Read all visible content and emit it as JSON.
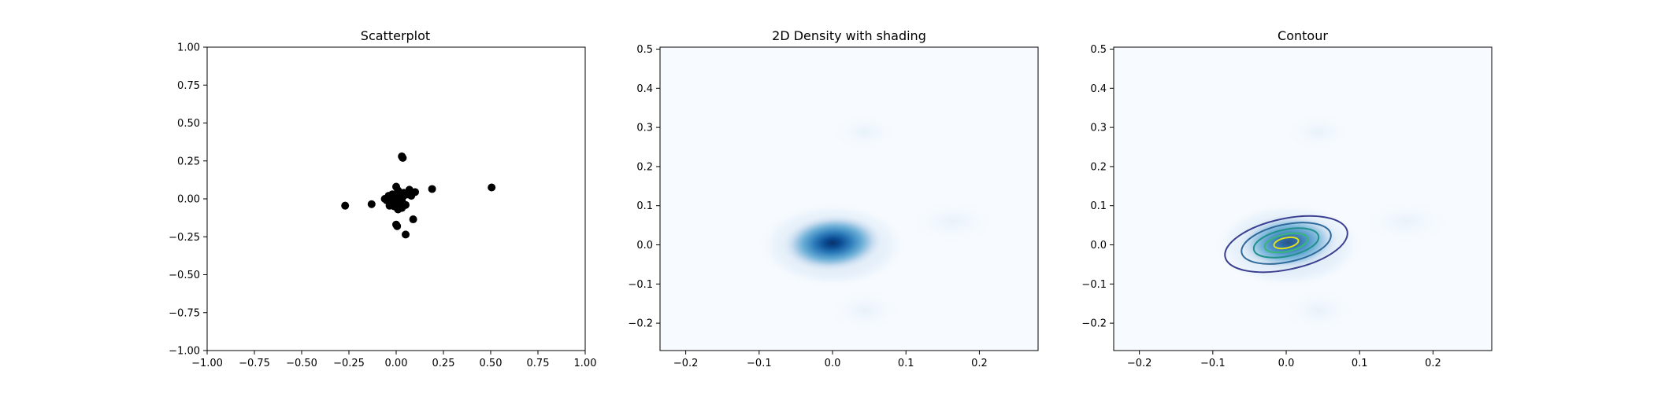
{
  "chart_data": [
    {
      "type": "scatter",
      "title": "Scatterplot",
      "xlim": [
        -1.0,
        1.0
      ],
      "ylim": [
        -1.0,
        1.0
      ],
      "xticks": [
        "−1.00",
        "−0.75",
        "−0.50",
        "−0.25",
        "0.00",
        "0.25",
        "0.50",
        "0.75",
        "1.00"
      ],
      "yticks": [
        "−1.00",
        "−0.75",
        "−0.50",
        "−0.25",
        "0.00",
        "0.25",
        "0.50",
        "0.75",
        "1.00"
      ],
      "grid": false,
      "color": "#000000",
      "points": [
        {
          "x": 0.03,
          "y": 0.28
        },
        {
          "x": 0.035,
          "y": 0.27
        },
        {
          "x": 0.505,
          "y": 0.075
        },
        {
          "x": 0.19,
          "y": 0.065
        },
        {
          "x": -0.27,
          "y": -0.045
        },
        {
          "x": -0.13,
          "y": -0.035
        },
        {
          "x": 0.05,
          "y": -0.235
        },
        {
          "x": 0.09,
          "y": -0.135
        },
        {
          "x": 0.0,
          "y": -0.17
        },
        {
          "x": 0.005,
          "y": -0.18
        },
        {
          "x": 0.1,
          "y": 0.045
        },
        {
          "x": 0.07,
          "y": 0.06
        },
        {
          "x": 0.06,
          "y": 0.03
        },
        {
          "x": 0.04,
          "y": 0.02
        },
        {
          "x": 0.02,
          "y": 0.0
        },
        {
          "x": 0.0,
          "y": 0.08
        },
        {
          "x": 0.01,
          "y": 0.055
        },
        {
          "x": -0.02,
          "y": 0.03
        },
        {
          "x": -0.04,
          "y": 0.02
        },
        {
          "x": -0.05,
          "y": -0.01
        },
        {
          "x": -0.03,
          "y": -0.03
        },
        {
          "x": -0.01,
          "y": -0.05
        },
        {
          "x": 0.01,
          "y": -0.07
        },
        {
          "x": 0.03,
          "y": -0.06
        },
        {
          "x": 0.05,
          "y": -0.04
        },
        {
          "x": 0.0,
          "y": 0.0
        },
        {
          "x": -0.01,
          "y": 0.01
        },
        {
          "x": 0.02,
          "y": 0.02
        },
        {
          "x": 0.03,
          "y": -0.01
        },
        {
          "x": -0.02,
          "y": -0.02
        },
        {
          "x": 0.04,
          "y": 0.04
        },
        {
          "x": 0.08,
          "y": 0.02
        },
        {
          "x": -0.06,
          "y": 0.0
        },
        {
          "x": 0.015,
          "y": -0.035
        },
        {
          "x": -0.035,
          "y": -0.045
        },
        {
          "x": 0.025,
          "y": 0.035
        }
      ]
    },
    {
      "type": "heatmap",
      "title": "2D Density with shading",
      "colormap": "Blues",
      "xlim": [
        -0.235,
        0.28
      ],
      "ylim": [
        -0.27,
        0.505
      ],
      "xticks": [
        "−0.2",
        "−0.1",
        "0.0",
        "0.1",
        "0.2"
      ],
      "yticks": [
        "−0.2",
        "−0.1",
        "0.0",
        "0.1",
        "0.2",
        "0.3",
        "0.4",
        "0.5"
      ],
      "grid": false,
      "peak": {
        "x": 0.0,
        "y": 0.005
      },
      "low_color": "#f7fbff",
      "high_color": "#08306b"
    },
    {
      "type": "heatmap",
      "title": "Contour",
      "colormap": "Blues",
      "contour_colormap": "viridis",
      "xlim": [
        -0.235,
        0.28
      ],
      "ylim": [
        -0.27,
        0.505
      ],
      "xticks": [
        "−0.2",
        "−0.1",
        "0.0",
        "0.1",
        "0.2"
      ],
      "yticks": [
        "−0.2",
        "−0.1",
        "0.0",
        "0.1",
        "0.2",
        "0.3",
        "0.4",
        "0.5"
      ],
      "grid": false,
      "contour_levels": [
        0.1,
        0.3,
        0.5,
        0.7,
        0.9
      ],
      "contour_colors": [
        "#3b3f8f",
        "#2f6a9a",
        "#21918c",
        "#35b779",
        "#dde318"
      ]
    }
  ]
}
